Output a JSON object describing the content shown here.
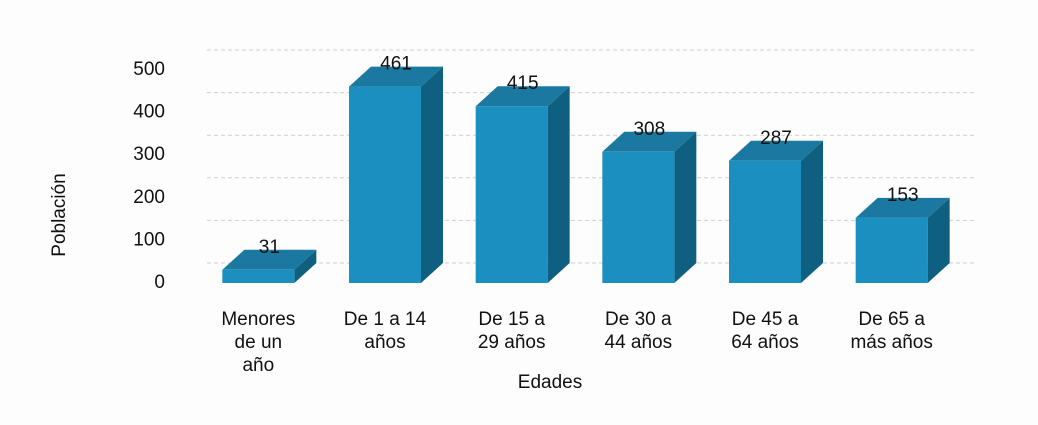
{
  "chart_data": {
    "type": "bar3d",
    "x_label": "Edades",
    "y_label": "Población",
    "categories": [
      "Menores de un año",
      "De 1 a 14 años",
      "De 15 a 29 años",
      "De 30 a 44 años",
      "De 45 a 64 años",
      "De 65 a más años"
    ],
    "values": [
      31,
      461,
      415,
      308,
      287,
      153
    ],
    "color": "#1a8fc0",
    "ylim": [
      0,
      500
    ],
    "yticks": [
      0,
      100,
      200,
      300,
      400,
      500
    ],
    "grid": true
  }
}
